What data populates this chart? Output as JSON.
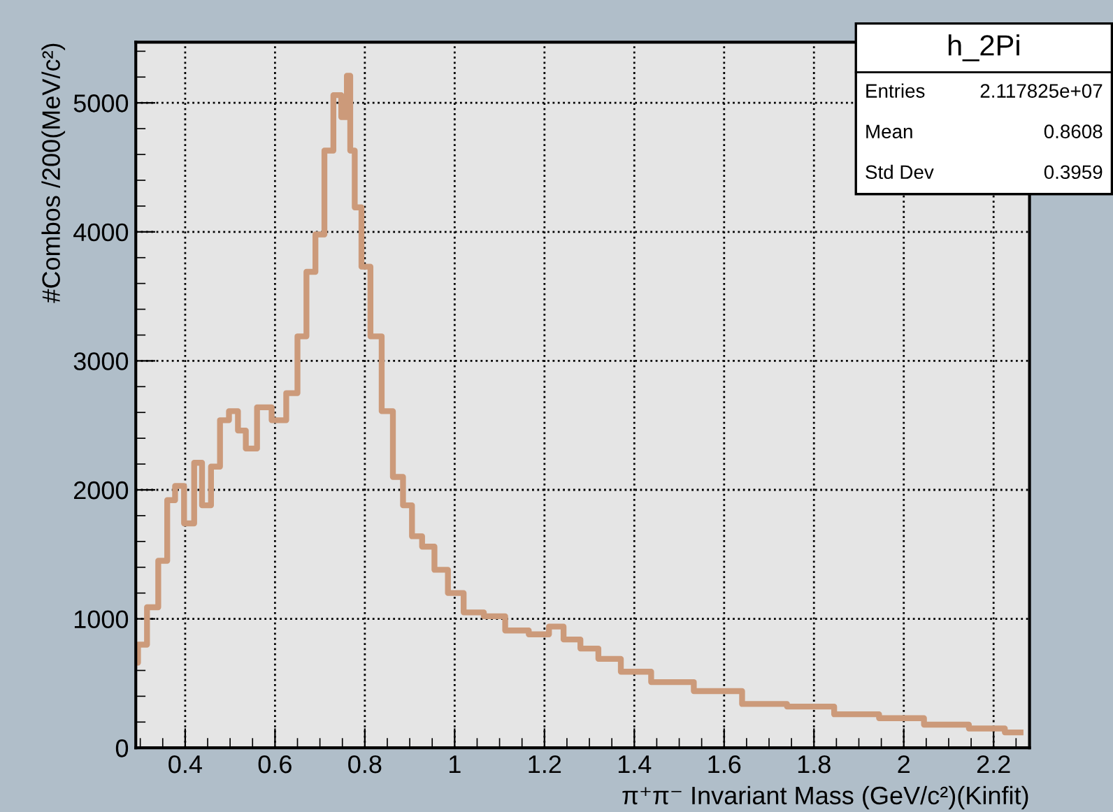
{
  "chart_data": {
    "type": "step",
    "xlabel": "π⁺π⁻ Invariant Mass (GeV/c²)(Kinfit)",
    "ylabel": "#Combos /200(MeV/c²)",
    "x": [
      0.29,
      0.3,
      0.33,
      0.35,
      0.37,
      0.385,
      0.41,
      0.43,
      0.445,
      0.47,
      0.485,
      0.51,
      0.525,
      0.545,
      0.575,
      0.61,
      0.64,
      0.66,
      0.68,
      0.7,
      0.72,
      0.74,
      0.755,
      0.765,
      0.77,
      0.785,
      0.8,
      0.825,
      0.85,
      0.875,
      0.895,
      0.915,
      0.94,
      0.97,
      1.0,
      1.04,
      1.09,
      1.135,
      1.195,
      1.225,
      1.26,
      1.3,
      1.34,
      1.4,
      1.475,
      1.59,
      1.69,
      1.79,
      1.9,
      1.99,
      2.1,
      2.19,
      2.26
    ],
    "series": [
      {
        "color": "#cc9a7a",
        "values": [
          660,
          800,
          1090,
          1450,
          1920,
          2030,
          1740,
          2210,
          1880,
          2180,
          2540,
          2610,
          2460,
          2320,
          2640,
          2540,
          2750,
          3190,
          3690,
          3980,
          4630,
          5060,
          4890,
          5210,
          4630,
          4190,
          3730,
          3190,
          2610,
          2100,
          1880,
          1640,
          1560,
          1380,
          1200,
          1050,
          1020,
          910,
          880,
          940,
          840,
          770,
          690,
          590,
          510,
          440,
          340,
          320,
          260,
          230,
          180,
          150,
          120
        ]
      }
    ],
    "xlim": [
      0.29,
      2.28
    ],
    "ylim": [
      0,
      5470
    ],
    "xticks": [
      0.4,
      0.6,
      0.8,
      1,
      1.2,
      1.4,
      1.6,
      1.8,
      2,
      2.2
    ],
    "yticks": [
      0,
      1000,
      2000,
      3000,
      4000,
      5000
    ],
    "grid": true,
    "line_style": "solid",
    "annotations": [
      "h_2Pi",
      "Entries",
      "2.117825e+07",
      "Mean",
      "0.8608",
      "Std Dev",
      "0.3959"
    ]
  }
}
